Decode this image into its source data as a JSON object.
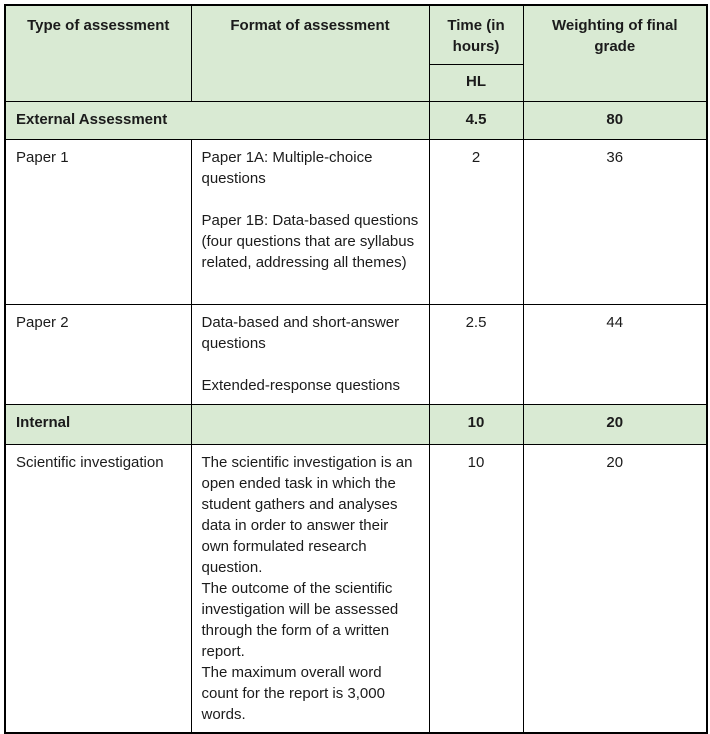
{
  "header": {
    "type": "Type of assessment",
    "format": "Format of assessment",
    "time": "Time (in hours)",
    "time_sub": "HL",
    "weighting": "Weighting of final grade"
  },
  "rows": {
    "external": {
      "label": "External Assessment",
      "time": "4.5",
      "weighting": "80"
    },
    "paper1": {
      "type": "Paper 1",
      "format_para1": "Paper 1A: Multiple-choice questions",
      "format_para2": "Paper 1B: Data-based questions (four questions that are syllabus related, addressing all themes)",
      "time": "2",
      "weighting": "36"
    },
    "paper2": {
      "type": "Paper 2",
      "format_para1": "Data-based and short-answer questions",
      "format_para2": "Extended-response questions",
      "time": "2.5",
      "weighting": "44"
    },
    "internal": {
      "label": "Internal",
      "format": "",
      "time": "10",
      "weighting": "20"
    },
    "scientific": {
      "type": "Scientific investigation",
      "format_para1": "The scientific investigation is an open ended task in which the student gathers and analyses data in order to answer their own formulated research question.",
      "format_para2": "The outcome of the scientific investigation will be assessed through the form of a written report.",
      "format_para3": "The maximum overall word count for the report is 3,000 words.",
      "time": "10",
      "weighting": "20"
    }
  },
  "colors": {
    "section_green": "#d9ead3",
    "border_black": "#000000"
  }
}
